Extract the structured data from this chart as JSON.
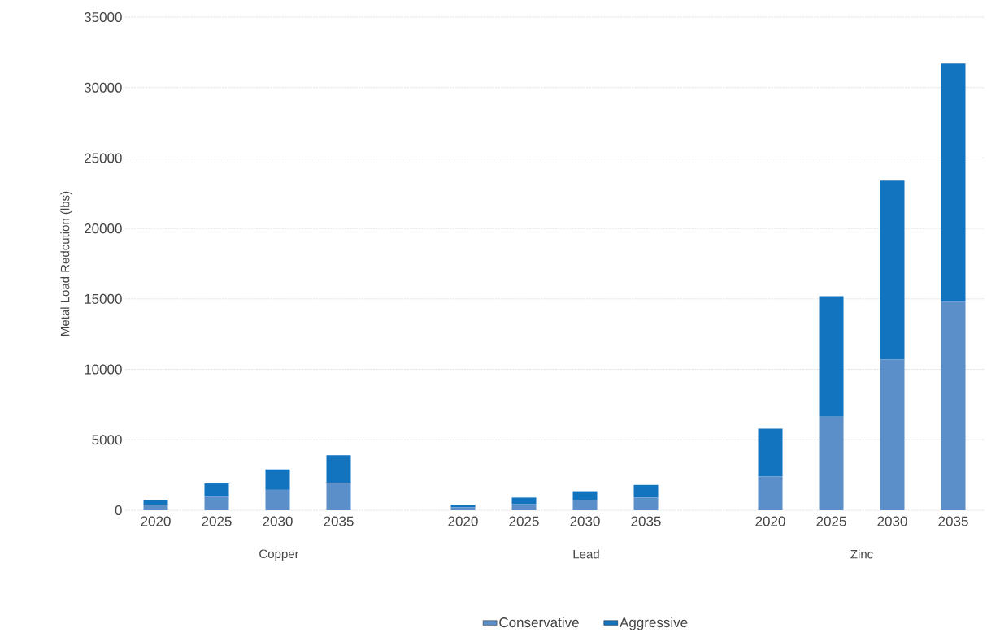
{
  "chart_data": [
    {
      "type": "bar",
      "stacked": true,
      "categories": [
        "2020",
        "2025",
        "2030",
        "2035"
      ],
      "xlabel": "Copper",
      "ylabel": "Metal Load Redcution (lbs)",
      "ylim": [
        0,
        35000
      ],
      "yticks": [
        0,
        5000,
        10000,
        15000,
        20000,
        25000,
        30000,
        35000
      ],
      "grid": "y",
      "series": [
        {
          "color": "#5b8fc9",
          "values": [
            400,
            950,
            1450,
            1950
          ]
        },
        {
          "color": "#1273bf",
          "values": [
            350,
            950,
            1450,
            1950
          ]
        }
      ]
    },
    {
      "type": "bar",
      "stacked": true,
      "categories": [
        "2020",
        "2025",
        "2030",
        "2035"
      ],
      "xlabel": "Lead",
      "ylim": [
        0,
        35000
      ],
      "yticks": [
        0,
        5000,
        10000,
        15000,
        20000,
        25000,
        30000,
        35000
      ],
      "grid": "y",
      "tick_labels": "x",
      "legend": "bottom",
      "series": [
        {
          "name": "Conservative",
          "color": "#5b8fc9",
          "values": [
            200,
            450,
            700,
            900
          ]
        },
        {
          "name": "Aggressive",
          "color": "#1273bf",
          "values": [
            200,
            450,
            650,
            900
          ]
        }
      ]
    },
    {
      "type": "bar",
      "stacked": true,
      "categories": [
        "2020",
        "2025",
        "2030",
        "2035"
      ],
      "xlabel": "Zinc",
      "ylim": [
        0,
        35000
      ],
      "yticks": [
        0,
        5000,
        10000,
        15000,
        20000,
        25000,
        30000,
        35000
      ],
      "grid": "y",
      "tick_labels": "x",
      "series": [
        {
          "color": "#5b8fc9",
          "values": [
            2400,
            6650,
            10700,
            14800
          ]
        },
        {
          "color": "#1273bf",
          "values": [
            3400,
            8550,
            12700,
            16900
          ]
        }
      ]
    }
  ]
}
